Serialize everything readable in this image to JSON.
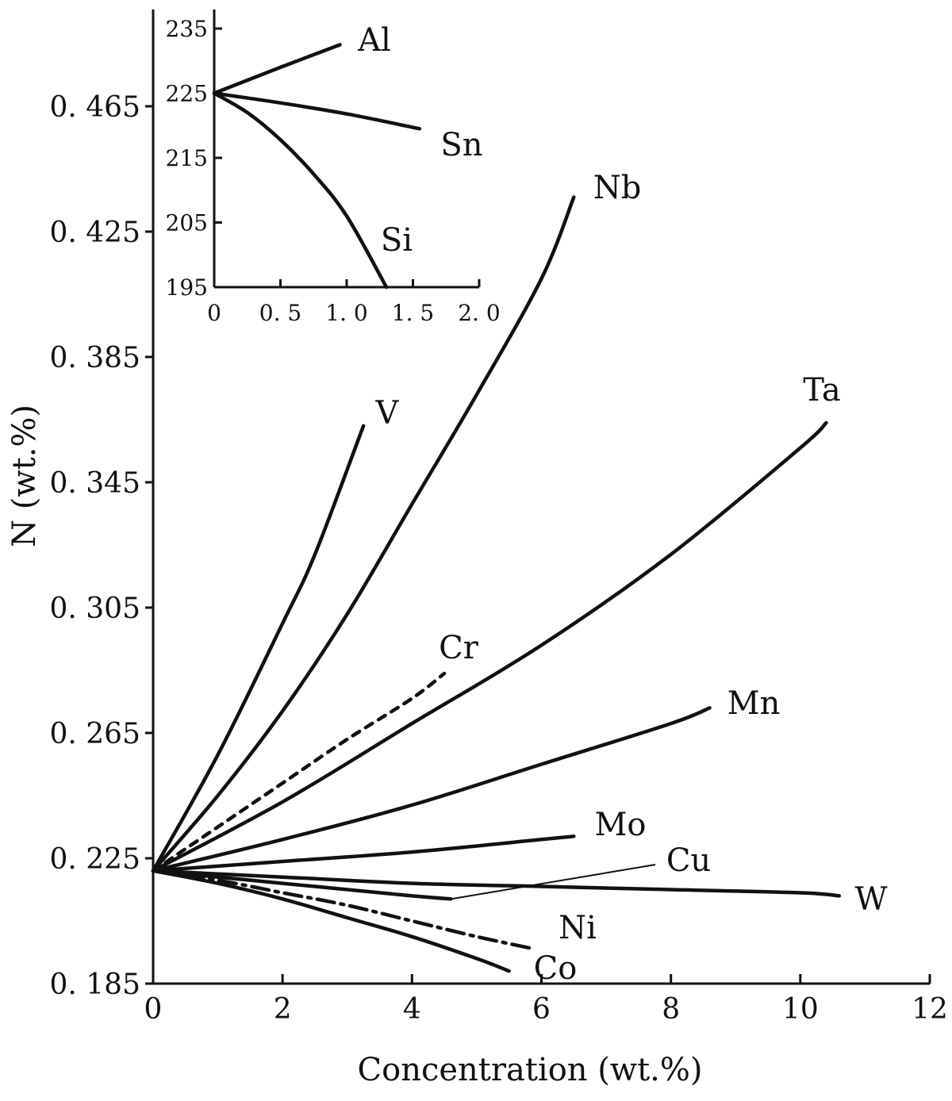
{
  "chart_data": [
    {
      "type": "line",
      "title": "",
      "xlabel": "Concentration (wt.%)",
      "ylabel": "N (wt.%)",
      "xlim": [
        0,
        12
      ],
      "ylim": [
        0.185,
        0.465
      ],
      "x_ticks": [
        "0",
        "2",
        "4",
        "6",
        "8",
        "10",
        "12"
      ],
      "y_ticks": [
        "0. 185",
        "0. 225",
        "0. 265",
        "0. 305",
        "0. 345",
        "0. 385",
        "0. 425",
        "0. 465"
      ],
      "grid": false,
      "legend": "none",
      "series": [
        {
          "name": "V",
          "style": "solid",
          "x": [
            0,
            1,
            2,
            2.5,
            3.25
          ],
          "y": [
            0.221,
            0.258,
            0.3,
            0.322,
            0.363
          ]
        },
        {
          "name": "Nb",
          "style": "solid",
          "x": [
            0,
            1,
            2,
            3,
            4,
            5,
            6,
            6.5
          ],
          "y": [
            0.221,
            0.245,
            0.272,
            0.303,
            0.338,
            0.373,
            0.41,
            0.436
          ]
        },
        {
          "name": "Cr",
          "style": "dashed",
          "x": [
            0,
            1,
            2,
            3,
            4,
            4.5
          ],
          "y": [
            0.221,
            0.235,
            0.249,
            0.263,
            0.276,
            0.284
          ]
        },
        {
          "name": "Ta",
          "style": "solid",
          "x": [
            0,
            2,
            4,
            6,
            8,
            10,
            10.4
          ],
          "y": [
            0.221,
            0.243,
            0.268,
            0.293,
            0.322,
            0.356,
            0.364
          ]
        },
        {
          "name": "Mn",
          "style": "solid",
          "x": [
            0,
            2,
            4,
            6,
            8,
            8.6
          ],
          "y": [
            0.221,
            0.231,
            0.242,
            0.255,
            0.268,
            0.273
          ]
        },
        {
          "name": "Mo",
          "style": "solid",
          "x": [
            0,
            2,
            4,
            6,
            6.5
          ],
          "y": [
            0.221,
            0.224,
            0.227,
            0.231,
            0.232
          ]
        },
        {
          "name": "Cu",
          "style": "solid",
          "x": [
            0,
            1,
            2,
            3,
            4,
            4.6
          ],
          "y": [
            0.221,
            0.219,
            0.217,
            0.215,
            0.213,
            0.212
          ]
        },
        {
          "name": "W",
          "style": "solid",
          "x": [
            0,
            2,
            4,
            6,
            8,
            10,
            10.6
          ],
          "y": [
            0.221,
            0.219,
            0.217,
            0.216,
            0.215,
            0.214,
            0.213
          ]
        },
        {
          "name": "Ni",
          "style": "dash-dot",
          "x": [
            0,
            1,
            2,
            3,
            4,
            5,
            5.9
          ],
          "y": [
            0.221,
            0.218,
            0.214,
            0.21,
            0.205,
            0.2,
            0.196
          ]
        },
        {
          "name": "Co",
          "style": "solid",
          "x": [
            0,
            1,
            2,
            3,
            4,
            5,
            5.5
          ],
          "y": [
            0.221,
            0.217,
            0.212,
            0.206,
            0.2,
            0.193,
            0.189
          ]
        }
      ]
    },
    {
      "type": "line",
      "title": "",
      "xlabel": "",
      "ylabel": "",
      "xlim": [
        0,
        2.0
      ],
      "ylim": [
        195,
        235
      ],
      "x_ticks": [
        "0",
        "0. 5",
        "1. 0",
        "1. 5",
        "2. 0"
      ],
      "y_ticks": [
        "195",
        "205",
        "215",
        "225",
        "235"
      ],
      "grid": false,
      "legend": "none",
      "series": [
        {
          "name": "Al",
          "style": "solid",
          "x": [
            0,
            0.5,
            0.95
          ],
          "y": [
            225,
            229,
            232.5
          ]
        },
        {
          "name": "Sn",
          "style": "solid",
          "x": [
            0,
            0.5,
            1.0,
            1.55
          ],
          "y": [
            225,
            223.5,
            221.8,
            219.5
          ]
        },
        {
          "name": "Si",
          "style": "solid",
          "x": [
            0,
            0.25,
            0.5,
            0.75,
            1.0,
            1.3
          ],
          "y": [
            225,
            222,
            217.8,
            212.5,
            206,
            195
          ]
        }
      ]
    }
  ]
}
